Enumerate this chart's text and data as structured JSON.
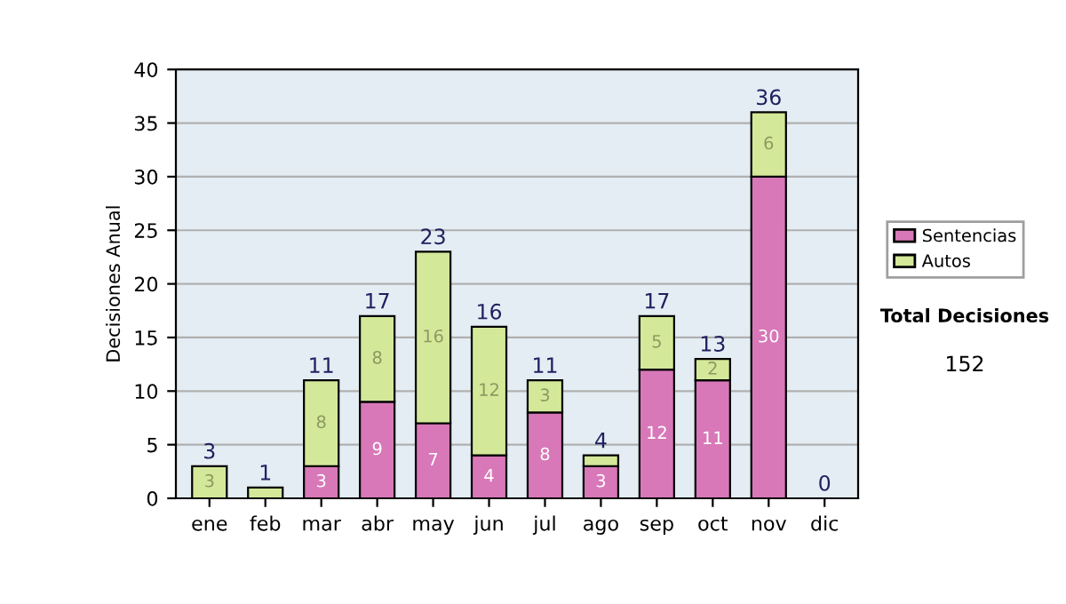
{
  "chart_data": {
    "type": "bar",
    "ylabel": "Decisiones Anual",
    "categories": [
      "ene",
      "feb",
      "mar",
      "abr",
      "may",
      "jun",
      "jul",
      "ago",
      "sep",
      "oct",
      "nov",
      "dic"
    ],
    "series": [
      {
        "name": "Sentencias",
        "color": "#d878b8",
        "values": [
          0,
          0,
          3,
          9,
          7,
          4,
          8,
          3,
          12,
          11,
          30,
          0
        ],
        "value_labels": [
          null,
          null,
          "3",
          "9",
          "7",
          "4",
          "8",
          "3",
          "12",
          "11",
          "30",
          null
        ]
      },
      {
        "name": "Autos",
        "color": "#d4e89a",
        "values": [
          3,
          1,
          8,
          8,
          16,
          12,
          3,
          1,
          5,
          2,
          6,
          0
        ],
        "value_labels": [
          "3",
          null,
          "8",
          "8",
          "16",
          "12",
          "3",
          null,
          "5",
          "2",
          "6",
          null
        ]
      }
    ],
    "stacked": true,
    "totals": [
      "3",
      "1",
      "11",
      "17",
      "23",
      "16",
      "11",
      "4",
      "17",
      "13",
      "36",
      "0"
    ],
    "ylim": [
      0,
      40
    ],
    "yticks": [
      0,
      5,
      10,
      15,
      20,
      25,
      30,
      35,
      40
    ],
    "grid": "y",
    "legend": "right",
    "annotations": [
      "Total Decisiones",
      "152"
    ]
  }
}
